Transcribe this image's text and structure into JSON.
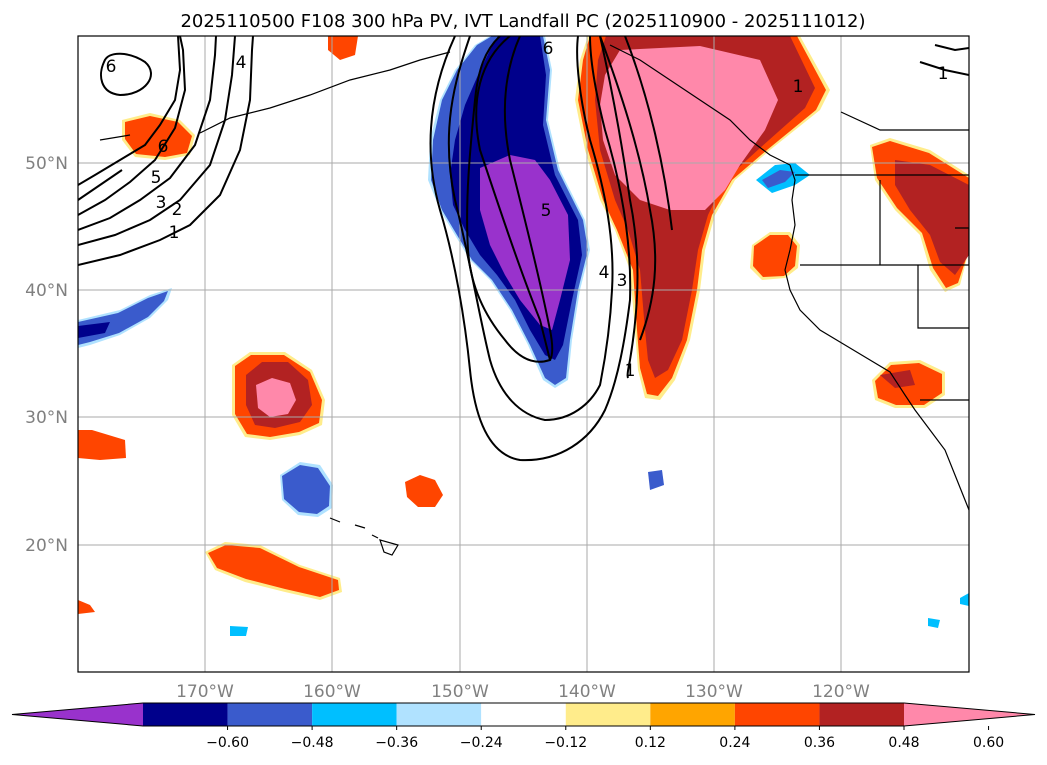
{
  "title": "2025110500 F108 300 hPa PV, IVT Landfall PC (2025110900 - 2025111012)",
  "lat_labels": [
    "50°N",
    "40°N",
    "30°N",
    "20°N"
  ],
  "lon_labels": [
    "170°W",
    "160°W",
    "150°W",
    "140°W",
    "130°W",
    "120°W"
  ],
  "contour_labels": [
    "6",
    "4",
    "5",
    "3",
    "2",
    "1",
    "6",
    "5",
    "4",
    "3",
    "1",
    "6",
    "1",
    "1"
  ],
  "colorbar": {
    "ticks": [
      "−0.60",
      "−0.48",
      "−0.36",
      "−0.24",
      "−0.12",
      "0.12",
      "0.24",
      "0.36",
      "0.48",
      "0.60"
    ],
    "colors": [
      "#9932cc",
      "#00008b",
      "#3a5bcc",
      "#00bfff",
      "#b0e2ff",
      "#ffffff",
      "#ffec8b",
      "#ffa500",
      "#ff4500",
      "#b22222",
      "#ff88aa"
    ]
  },
  "colors": {
    "map_border": "#000000",
    "grid": "#aaaaaa",
    "coast": "#000000"
  }
}
